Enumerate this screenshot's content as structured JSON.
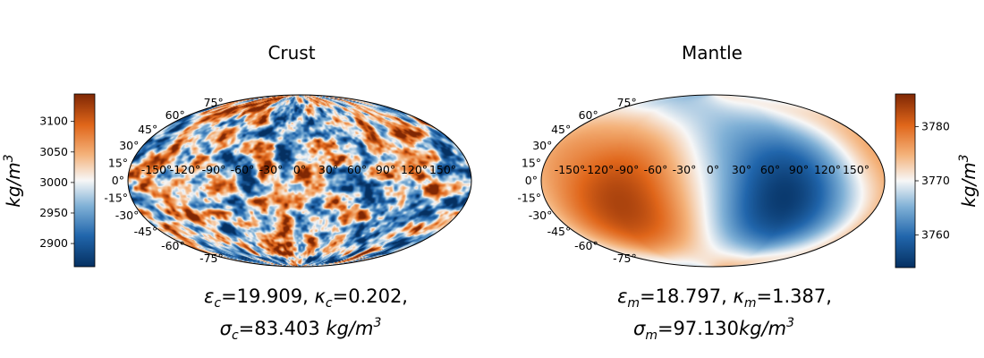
{
  "chart_data": [
    {
      "type": "heatmap",
      "projection": "mollweide",
      "title": "Crust",
      "latitude_labels": [
        "75°",
        "60°",
        "45°",
        "30°",
        "15°",
        "0°",
        "-15°",
        "-30°",
        "-45°",
        "-60°",
        "-75°"
      ],
      "longitude_labels": [
        "-150°",
        "-120°",
        "-90°",
        "-60°",
        "-30°",
        "0°",
        "30°",
        "60°",
        "90°",
        "120°",
        "150°"
      ],
      "colorbar": {
        "position": "left",
        "range": [
          2862,
          3145
        ],
        "ticks": [
          "2900",
          "2950",
          "3000",
          "3050",
          "3100"
        ],
        "label": "kg/m^3",
        "colormap": "diverging blue-white-orange"
      },
      "caption": {
        "line1": {
          "eps_sym": "ε",
          "eps_sub": "c",
          "eps_val": "=19.909, ",
          "kap_sym": "κ",
          "kap_sub": "c",
          "kap_val": "=0.202,"
        },
        "line2": {
          "sig_sym": "σ",
          "sig_sub": "c",
          "sig_val": "=83.403 ",
          "unit": "kg/m",
          "unit_exp": "3"
        }
      },
      "field": {
        "mean": 3000,
        "sigma": 83.403,
        "structure": "random small-scale"
      }
    },
    {
      "type": "heatmap",
      "projection": "mollweide",
      "title": "Mantle",
      "latitude_labels": [
        "75°",
        "60°",
        "45°",
        "30°",
        "15°",
        "0°",
        "-15°",
        "-30°",
        "-45°",
        "-60°",
        "-75°"
      ],
      "longitude_labels": [
        "-150°",
        "-120°",
        "-90°",
        "-60°",
        "-30°",
        "0°",
        "30°",
        "60°",
        "90°",
        "120°",
        "150°"
      ],
      "colorbar": {
        "position": "right",
        "range": [
          3754,
          3786
        ],
        "ticks": [
          "3760",
          "3770",
          "3780"
        ],
        "label": "kg/m^3",
        "colormap": "diverging blue-white-orange"
      },
      "caption": {
        "line1": {
          "eps_sym": "ε",
          "eps_sub": "m",
          "eps_val": "=18.797, ",
          "kap_sym": "κ",
          "kap_sub": "m",
          "kap_val": "=1.387,"
        },
        "line2": {
          "sig_sym": "σ",
          "sig_sub": "m",
          "sig_val": "=97.130",
          "unit": "kg/m",
          "unit_exp": "3"
        }
      },
      "field": {
        "structure": "large-scale: high west hemisphere (peak near -100° lon, -20° lat), low east hemisphere (peak near 75° lon, -15° lat)"
      }
    }
  ]
}
